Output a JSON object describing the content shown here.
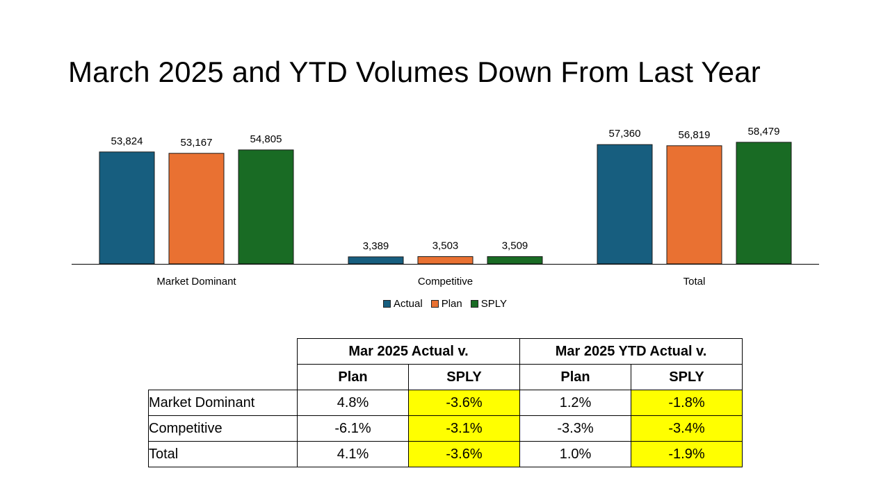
{
  "slide": {
    "title": "March 2025 and YTD Volumes Down From Last Year"
  },
  "colors": {
    "actual": "#175e7f",
    "plan": "#e97132",
    "sply": "#196b24",
    "highlight": "#ffff00"
  },
  "chart_data": {
    "type": "bar",
    "categories": [
      "Market Dominant",
      "Competitive",
      "Total"
    ],
    "series": [
      {
        "name": "Actual",
        "values": [
          53824,
          3389,
          57360
        ],
        "labels": [
          "53,824",
          "3,389",
          "57,360"
        ]
      },
      {
        "name": "Plan",
        "values": [
          53167,
          3503,
          56819
        ],
        "labels": [
          "53,167",
          "3,503",
          "56,819"
        ]
      },
      {
        "name": "SPLY",
        "values": [
          54805,
          3509,
          58479
        ],
        "labels": [
          "54,805",
          "3,509",
          "58,479"
        ]
      }
    ],
    "xlabel": "",
    "ylabel": "",
    "ylim": [
      0,
      60000
    ],
    "grid": false,
    "legend": "bottom"
  },
  "table": {
    "groups": [
      "Mar 2025 Actual v.",
      "Mar 2025 YTD Actual v."
    ],
    "subheaders": [
      "Plan",
      "SPLY",
      "Plan",
      "SPLY"
    ],
    "rows": [
      {
        "label": "Market Dominant",
        "values": [
          "4.8%",
          "-3.6%",
          "1.2%",
          "-1.8%"
        ]
      },
      {
        "label": "Competitive",
        "values": [
          "-6.1%",
          "-3.1%",
          "-3.3%",
          "-3.4%"
        ]
      },
      {
        "label": "Total",
        "values": [
          "4.1%",
          "-3.6%",
          "1.0%",
          "-1.9%"
        ]
      }
    ]
  }
}
